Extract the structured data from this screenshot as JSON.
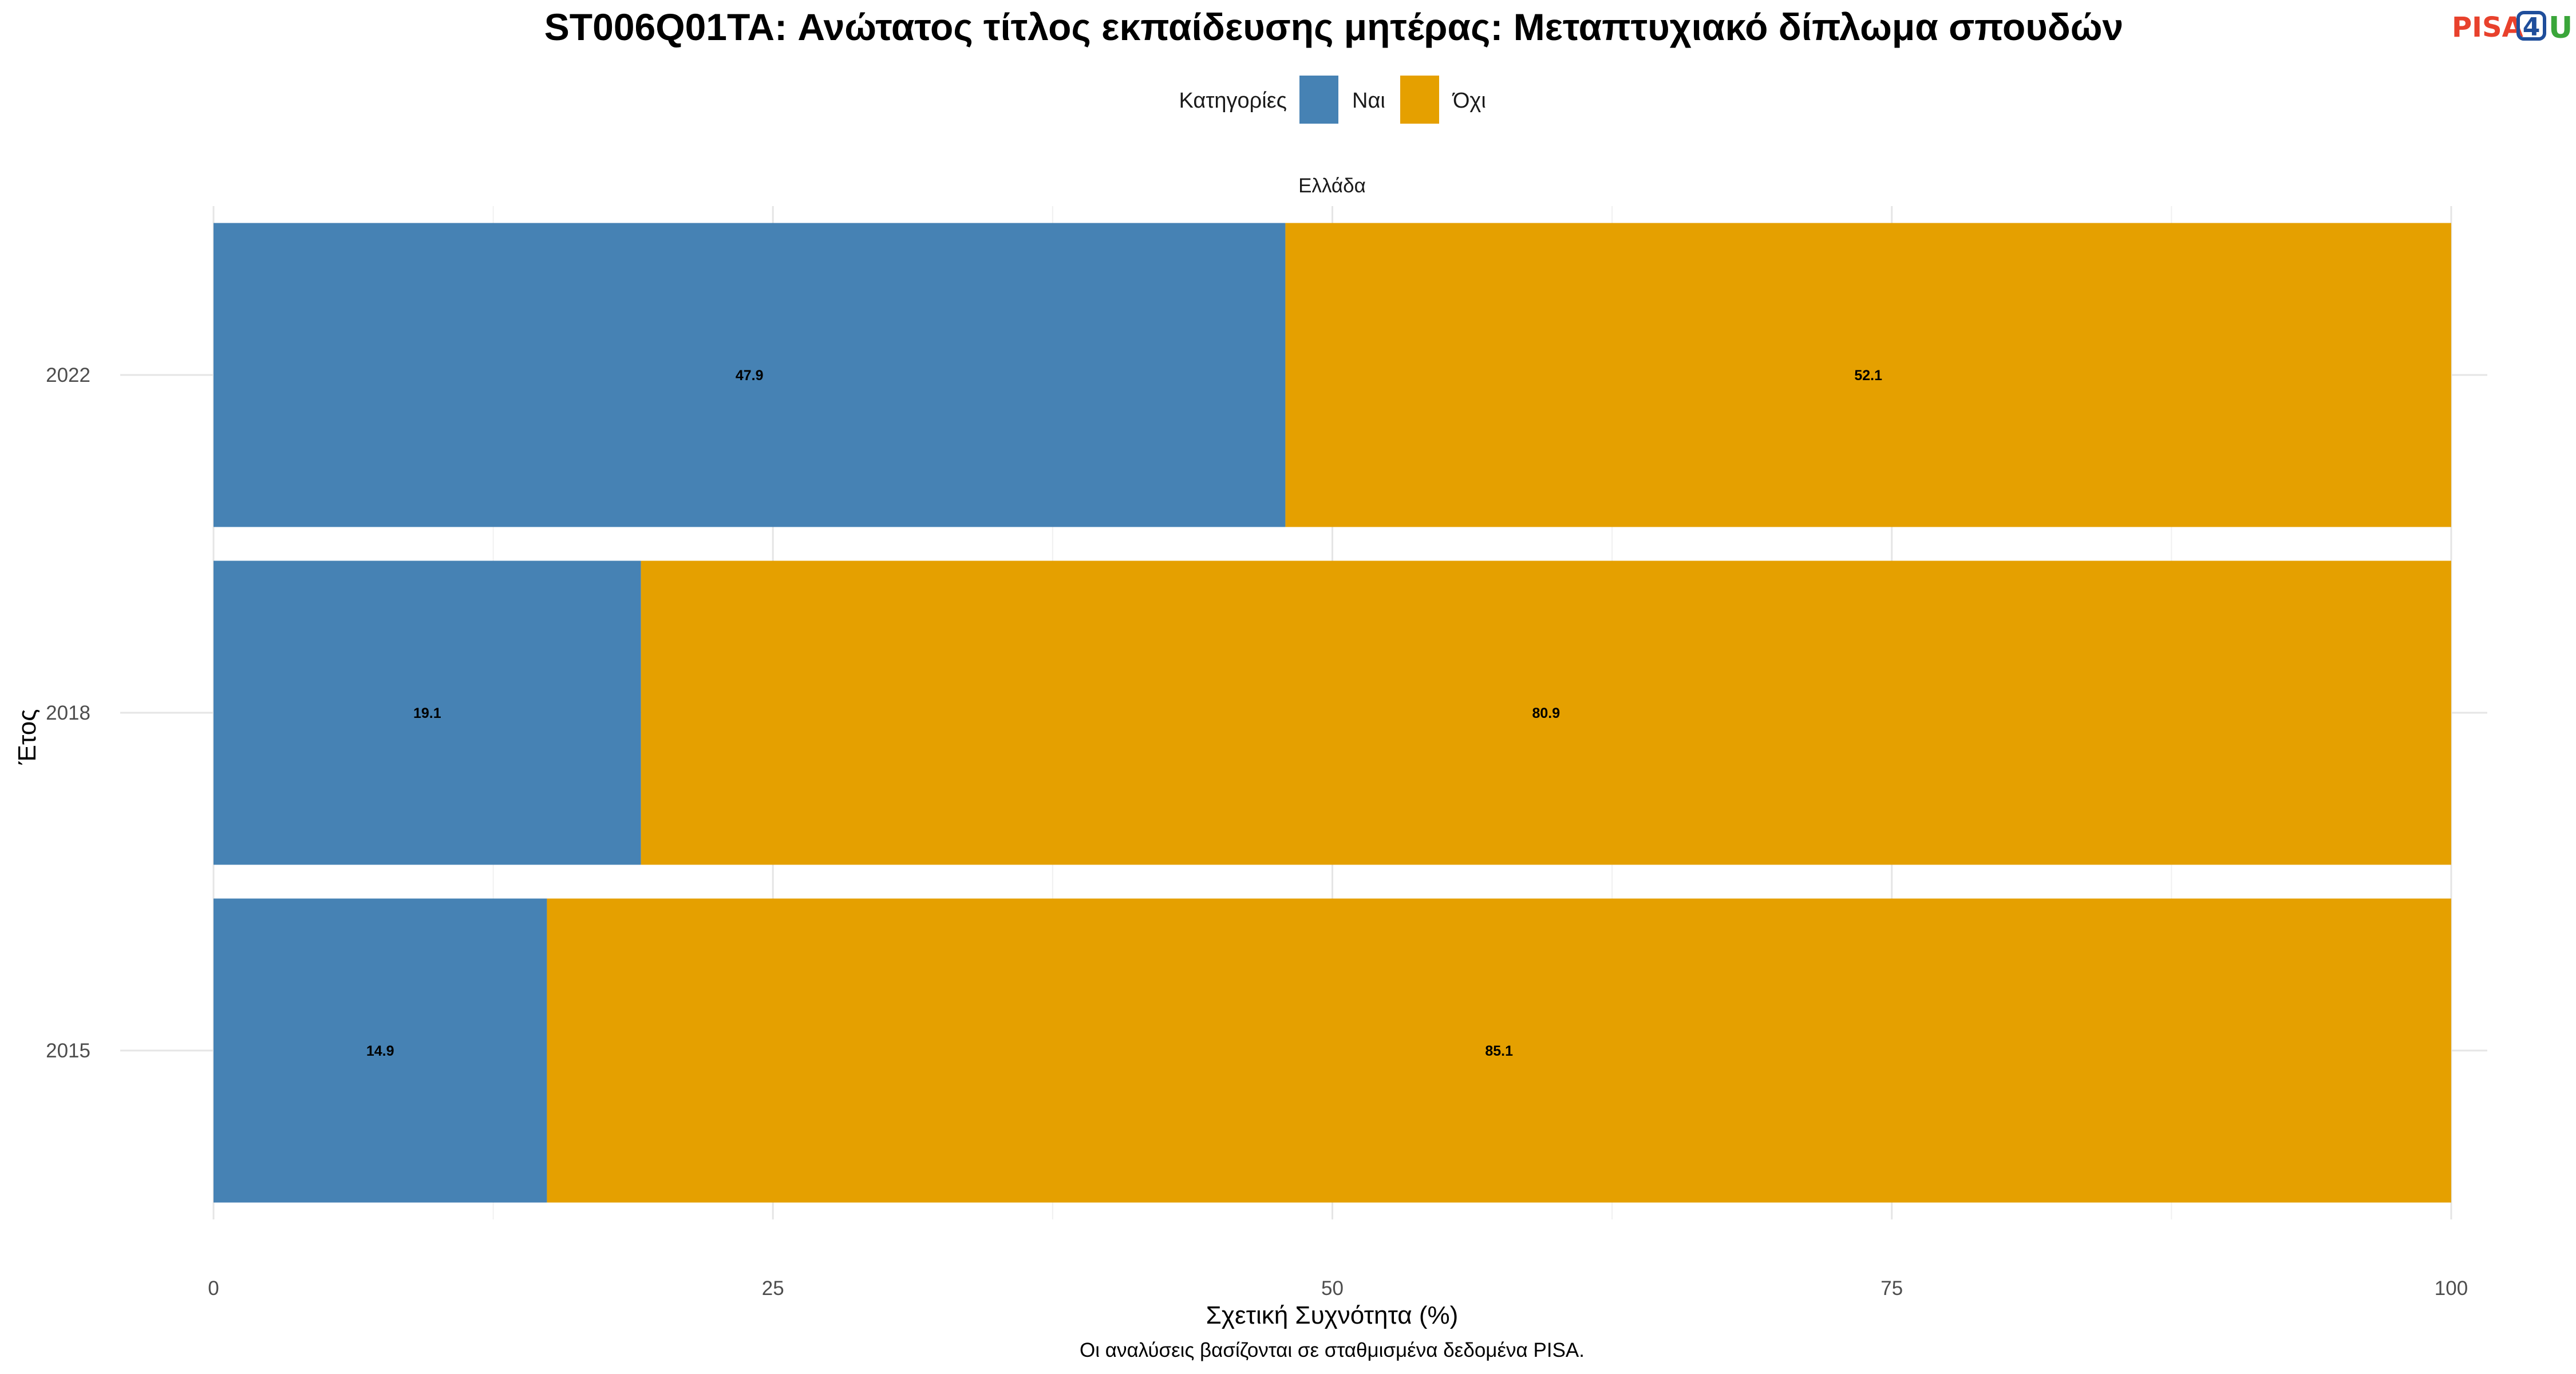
{
  "logo": {
    "part1": "PISA",
    "part2": "4",
    "part3": "U"
  },
  "chart_data": {
    "type": "bar",
    "orientation": "horizontal",
    "stacked": true,
    "title": "ST006Q01TA: Ανώτατος τίτλος εκπαίδευσης μητέρας: Μεταπτυχιακό δίπλωμα σπουδών",
    "facet": "Ελλάδα",
    "legend_title": "Κατηγορίες",
    "legend_position": "top",
    "categories": [
      "2022",
      "2018",
      "2015"
    ],
    "series": [
      {
        "name": "Ναι",
        "color": "#4682b4",
        "values": [
          47.9,
          19.1,
          14.9
        ]
      },
      {
        "name": "Όχι",
        "color": "#e5a000",
        "values": [
          52.1,
          80.9,
          85.1
        ]
      }
    ],
    "xlabel": "Σχετική Συχνότητα (%)",
    "ylabel": "Έτος",
    "xlim": [
      0,
      100
    ],
    "xticks": [
      0,
      25,
      50,
      75,
      100
    ],
    "grid": true,
    "caption": "Οι αναλύσεις βασίζονται σε σταθμισμένα δεδομένα PISA."
  }
}
